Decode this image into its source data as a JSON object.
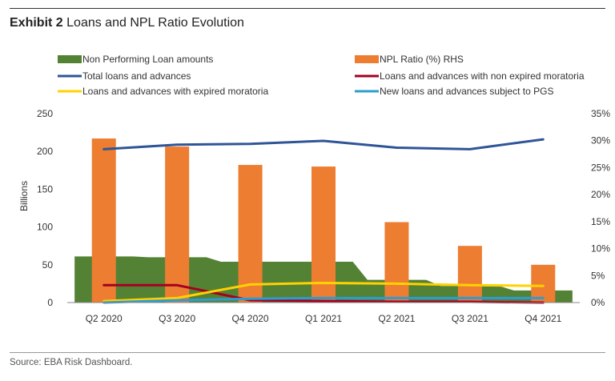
{
  "header": {
    "exhibit": "Exhibit 2",
    "title": "Loans and NPL Ratio Evolution"
  },
  "footer": {
    "source": "Source: EBA Risk Dashboard."
  },
  "chart_data": {
    "type": "bar",
    "title": "Loans and NPL Ratio Evolution",
    "categories": [
      "Q2 2020",
      "Q3 2020",
      "Q4 2020",
      "Q1 2021",
      "Q2 2021",
      "Q3 2021",
      "Q4 2021"
    ],
    "ylabel": "Billions",
    "ylim": [
      0,
      250
    ],
    "yticks": [
      "0",
      "50",
      "100",
      "150",
      "200",
      "250"
    ],
    "y2lim": [
      0,
      35
    ],
    "y2ticks": [
      "0%",
      "5%",
      "10%",
      "15%",
      "20%",
      "25%",
      "30%",
      "35%"
    ],
    "grid": false,
    "legend_placement": "top",
    "series": [
      {
        "name": "Non Performing Loan amounts",
        "type": "area",
        "axis": "left",
        "color": "#548235",
        "values": [
          61,
          60,
          54,
          54,
          30,
          22,
          16
        ]
      },
      {
        "name": "NPL Ratio (%) RHS",
        "type": "bar",
        "axis": "right",
        "color": "#ED7D31",
        "values": [
          30.4,
          28.9,
          25.5,
          25.2,
          14.9,
          10.5,
          7.0
        ]
      },
      {
        "name": "Total loans and advances",
        "type": "line",
        "axis": "left",
        "color": "#2F5597",
        "values": [
          203,
          209,
          210,
          214,
          205,
          203,
          216
        ]
      },
      {
        "name": "Loans and advances with non expired moratoria",
        "type": "line",
        "axis": "left",
        "color": "#A50021",
        "values": [
          23,
          23,
          3,
          2,
          1,
          1,
          0
        ]
      },
      {
        "name": "Loans and advances with expired moratoria",
        "type": "line",
        "axis": "left",
        "color": "#FFD200",
        "values": [
          2,
          6,
          24,
          26,
          25,
          23,
          22
        ]
      },
      {
        "name": "New loans and advances subject to PGS",
        "type": "line",
        "axis": "left",
        "color": "#2E9CD1",
        "values": [
          0,
          3,
          5,
          6,
          6,
          6,
          6
        ]
      }
    ]
  }
}
